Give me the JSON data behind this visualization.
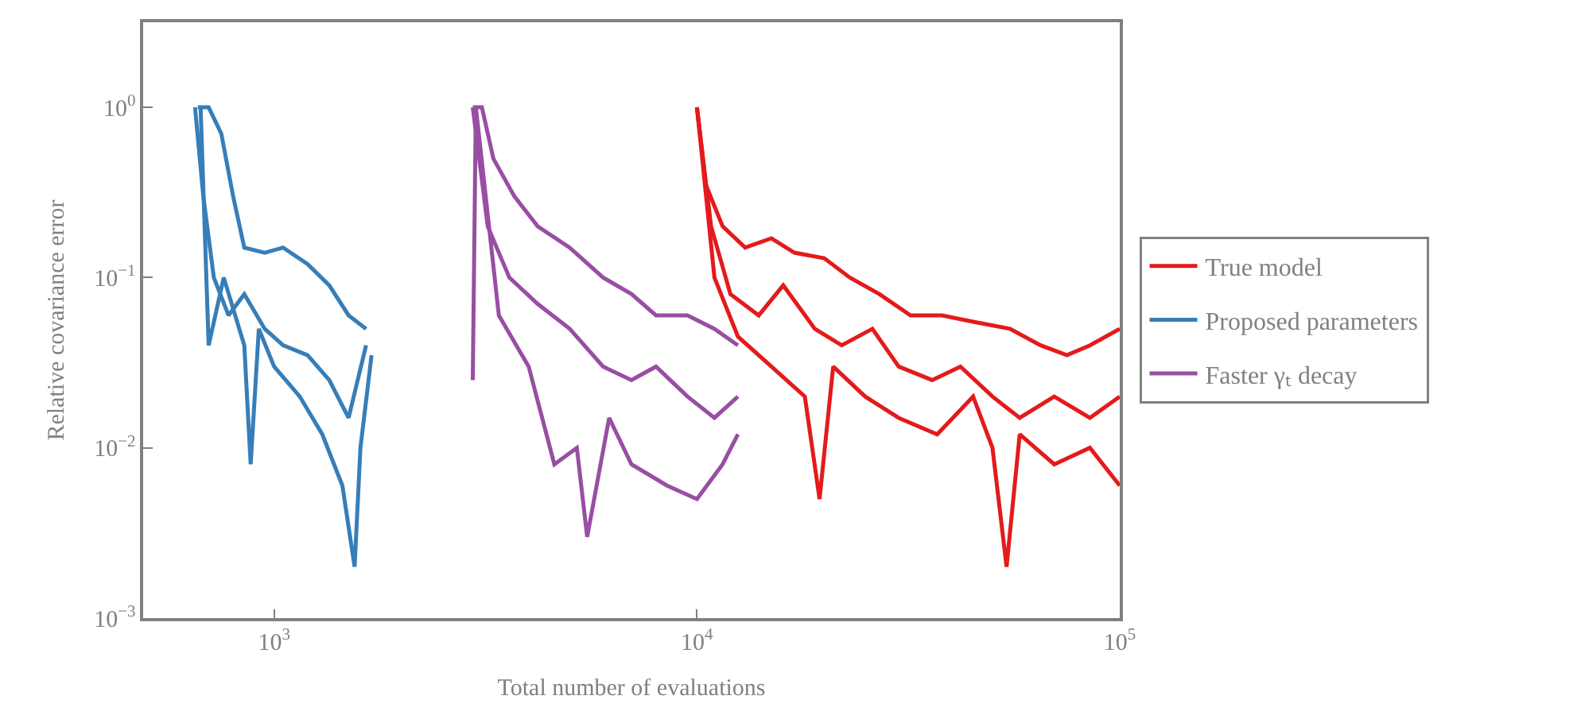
{
  "chart_data": {
    "type": "line",
    "xlabel": "Total number of evaluations",
    "ylabel": "Relative covariance error",
    "log": "xy",
    "legend": "right",
    "line_style": "solid",
    "marker": "none",
    "xlim": [
      490,
      100000
    ],
    "ylim": [
      0.001,
      3.16
    ],
    "xticks": [
      {
        "value": 1000,
        "label": "10$^{3}$"
      },
      {
        "value": 10000,
        "label": "10$^{4}$"
      },
      {
        "value": 100000,
        "label": "10$^{5}$"
      }
    ],
    "yticks": [
      {
        "value": 0.001,
        "label": "10$^{−3}$"
      },
      {
        "value": 0.01,
        "label": "10$^{−2}$"
      },
      {
        "value": 0.1,
        "label": "10$^{−1}$"
      },
      {
        "value": 1,
        "label": "10$^{0}$"
      }
    ],
    "series": [
      {
        "name": "True model",
        "color": "#e41a1c",
        "x": [
          10000,
          10500,
          11500,
          13000,
          15000,
          17000,
          20000,
          23000,
          27000,
          32000,
          38000,
          45000,
          55000,
          65000,
          75000,
          85000,
          100000
        ],
        "values": [
          1.0,
          0.35,
          0.2,
          0.15,
          0.17,
          0.14,
          0.13,
          0.1,
          0.08,
          0.06,
          0.06,
          0.055,
          0.05,
          0.04,
          0.035,
          0.04,
          0.05
        ]
      },
      {
        "color": "#e41a1c",
        "x": [
          10000,
          10800,
          12000,
          14000,
          16000,
          19000,
          22000,
          26000,
          30000,
          36000,
          42000,
          50000,
          58000,
          70000,
          85000,
          100000
        ],
        "values": [
          1.0,
          0.2,
          0.08,
          0.06,
          0.09,
          0.05,
          0.04,
          0.05,
          0.03,
          0.025,
          0.03,
          0.02,
          0.015,
          0.02,
          0.015,
          0.02
        ]
      },
      {
        "color": "#e41a1c",
        "x": [
          10000,
          11000,
          12500,
          15000,
          18000,
          19500,
          21000,
          25000,
          30000,
          37000,
          45000,
          50000,
          54000,
          58000,
          70000,
          85000,
          100000
        ],
        "values": [
          1.0,
          0.1,
          0.045,
          0.03,
          0.02,
          0.005,
          0.03,
          0.02,
          0.015,
          0.012,
          0.02,
          0.01,
          0.002,
          0.012,
          0.008,
          0.01,
          0.006
        ]
      },
      {
        "name": "Proposed parameters",
        "color": "#377eb8",
        "x": [
          660,
          700,
          750,
          800,
          850,
          950,
          1050,
          1200,
          1350,
          1500,
          1650
        ],
        "values": [
          1.0,
          1.0,
          0.7,
          0.3,
          0.15,
          0.14,
          0.15,
          0.12,
          0.09,
          0.06,
          0.05
        ]
      },
      {
        "color": "#377eb8",
        "x": [
          650,
          680,
          720,
          780,
          850,
          950,
          1050,
          1200,
          1350,
          1500,
          1650
        ],
        "values": [
          1.0,
          0.3,
          0.1,
          0.06,
          0.08,
          0.05,
          0.04,
          0.035,
          0.025,
          0.015,
          0.04
        ]
      },
      {
        "color": "#377eb8",
        "x": [
          670,
          700,
          760,
          850,
          880,
          920,
          1000,
          1150,
          1300,
          1450,
          1550,
          1600,
          1700
        ],
        "values": [
          1.0,
          0.04,
          0.1,
          0.04,
          0.008,
          0.05,
          0.03,
          0.02,
          0.012,
          0.006,
          0.002,
          0.01,
          0.035
        ]
      },
      {
        "name": "Faster γₜ decay",
        "color": "#984ea3",
        "x": [
          2950,
          3100,
          3300,
          3700,
          4200,
          5000,
          6000,
          7000,
          8000,
          9500,
          11000,
          12500
        ],
        "values": [
          1.0,
          1.0,
          0.5,
          0.3,
          0.2,
          0.15,
          0.1,
          0.08,
          0.06,
          0.06,
          0.05,
          0.04
        ]
      },
      {
        "color": "#984ea3",
        "x": [
          2950,
          3200,
          3600,
          4200,
          5000,
          6000,
          7000,
          8000,
          9500,
          11000,
          12500
        ],
        "values": [
          1.0,
          0.2,
          0.1,
          0.07,
          0.05,
          0.03,
          0.025,
          0.03,
          0.02,
          0.015,
          0.02
        ]
      },
      {
        "color": "#984ea3",
        "x": [
          2950,
          3000,
          3400,
          4000,
          4600,
          5200,
          5500,
          6200,
          7000,
          8500,
          10000,
          11500,
          12500
        ],
        "values": [
          0.025,
          1.0,
          0.06,
          0.03,
          0.008,
          0.01,
          0.003,
          0.015,
          0.008,
          0.006,
          0.005,
          0.008,
          0.012
        ]
      }
    ]
  }
}
